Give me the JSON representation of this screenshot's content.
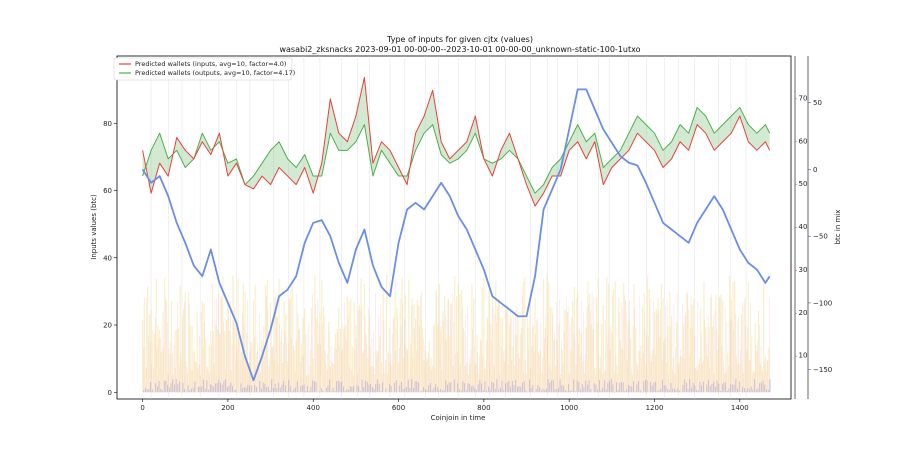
{
  "chart_data": {
    "type": "line",
    "title": "Type of inputs for given cjtx (values)",
    "subtitle": "wasabi2_zksnacks 2023-09-01 00-00-00--2023-10-01 00-00-00_unknown-static-100-1utxo",
    "xlabel": "Coinjoin in time",
    "ylabel": "Inputs values (btc)",
    "y2label": "btc in mix",
    "xlim": [
      -60,
      1520
    ],
    "ylim": [
      -2,
      100
    ],
    "y2lim": [
      0,
      80
    ],
    "y3lim": [
      -172,
      85
    ],
    "xticks": [
      0,
      200,
      400,
      600,
      800,
      1000,
      1200,
      1400
    ],
    "yticks": [
      0,
      20,
      40,
      60,
      80
    ],
    "y2ticks": [
      10,
      20,
      30,
      40,
      50,
      60,
      70
    ],
    "y3ticks": [
      50,
      0,
      -50,
      -100,
      -150
    ],
    "legend_position": "upper-left",
    "grid": "vertical-lines",
    "series": [
      {
        "name": "Predicted wallets (inputs, avg=10, factor=4.0)",
        "color": "#e8413a",
        "axis": "y2",
        "x": [
          0,
          20,
          40,
          60,
          80,
          100,
          120,
          140,
          160,
          180,
          200,
          220,
          240,
          260,
          280,
          300,
          320,
          340,
          360,
          380,
          400,
          420,
          440,
          460,
          480,
          500,
          520,
          540,
          560,
          580,
          600,
          620,
          640,
          660,
          680,
          700,
          720,
          740,
          760,
          780,
          800,
          820,
          840,
          860,
          880,
          900,
          920,
          940,
          960,
          980,
          1000,
          1020,
          1040,
          1060,
          1080,
          1100,
          1120,
          1140,
          1160,
          1180,
          1200,
          1220,
          1240,
          1260,
          1280,
          1300,
          1320,
          1340,
          1360,
          1380,
          1400,
          1420,
          1440,
          1460,
          1470
        ],
        "values": [
          58,
          48,
          55,
          52,
          61,
          58,
          56,
          60,
          57,
          62,
          52,
          55,
          50,
          49,
          52,
          50,
          54,
          52,
          50,
          54,
          48,
          55,
          70,
          62,
          60,
          66,
          75,
          55,
          60,
          58,
          54,
          50,
          62,
          66,
          72,
          60,
          56,
          58,
          60,
          66,
          56,
          52,
          58,
          62,
          56,
          50,
          45,
          48,
          52,
          52,
          58,
          60,
          56,
          60,
          50,
          54,
          56,
          58,
          62,
          60,
          58,
          54,
          56,
          60,
          58,
          64,
          62,
          58,
          60,
          62,
          66,
          60,
          58,
          60,
          58
        ]
      },
      {
        "name": "Predicted wallets (outputs, avg=10, factor=4.17)",
        "color": "#4fae4f",
        "axis": "y2",
        "x": [
          0,
          20,
          40,
          60,
          80,
          100,
          120,
          140,
          160,
          180,
          200,
          220,
          240,
          260,
          280,
          300,
          320,
          340,
          360,
          380,
          400,
          420,
          440,
          460,
          480,
          500,
          520,
          540,
          560,
          580,
          600,
          620,
          640,
          660,
          680,
          700,
          720,
          740,
          760,
          780,
          800,
          820,
          840,
          860,
          880,
          900,
          920,
          940,
          960,
          980,
          1000,
          1020,
          1040,
          1060,
          1080,
          1100,
          1120,
          1140,
          1160,
          1180,
          1200,
          1220,
          1240,
          1260,
          1280,
          1300,
          1320,
          1340,
          1360,
          1380,
          1400,
          1420,
          1440,
          1460,
          1470
        ],
        "values": [
          52,
          58,
          62,
          56,
          58,
          54,
          56,
          62,
          58,
          60,
          55,
          56,
          50,
          52,
          55,
          58,
          60,
          56,
          54,
          57,
          52,
          52,
          62,
          58,
          58,
          60,
          64,
          52,
          58,
          55,
          52,
          52,
          58,
          62,
          64,
          57,
          55,
          56,
          58,
          62,
          56,
          55,
          56,
          58,
          56,
          52,
          48,
          50,
          54,
          56,
          60,
          64,
          60,
          62,
          54,
          56,
          58,
          62,
          66,
          64,
          62,
          58,
          60,
          64,
          62,
          68,
          66,
          62,
          64,
          66,
          68,
          64,
          62,
          64,
          62
        ]
      },
      {
        "name": "btc in mix",
        "color": "#6b8ee6",
        "axis": "y3",
        "x": [
          0,
          20,
          40,
          60,
          80,
          100,
          120,
          140,
          160,
          180,
          200,
          220,
          240,
          260,
          280,
          300,
          320,
          340,
          360,
          380,
          400,
          420,
          440,
          460,
          480,
          500,
          520,
          540,
          560,
          580,
          600,
          620,
          640,
          660,
          680,
          700,
          720,
          740,
          760,
          780,
          800,
          820,
          840,
          860,
          880,
          900,
          920,
          940,
          960,
          980,
          1000,
          1020,
          1040,
          1060,
          1080,
          1100,
          1120,
          1140,
          1160,
          1180,
          1200,
          1220,
          1240,
          1260,
          1280,
          1300,
          1320,
          1340,
          1360,
          1380,
          1400,
          1420,
          1440,
          1460,
          1470
        ],
        "values": [
          0,
          -10,
          -5,
          -20,
          -40,
          -55,
          -72,
          -80,
          -60,
          -85,
          -100,
          -115,
          -140,
          -158,
          -140,
          -120,
          -95,
          -90,
          -80,
          -55,
          -40,
          -38,
          -50,
          -70,
          -85,
          -60,
          -45,
          -72,
          -88,
          -95,
          -55,
          -30,
          -25,
          -30,
          -20,
          -10,
          -20,
          -35,
          -45,
          -60,
          -75,
          -95,
          -100,
          -105,
          -110,
          -110,
          -80,
          -30,
          -15,
          0,
          30,
          60,
          60,
          45,
          30,
          20,
          10,
          5,
          3,
          -10,
          -25,
          -40,
          -45,
          -50,
          -55,
          -40,
          -30,
          -20,
          -30,
          -45,
          -60,
          -70,
          -75,
          -85,
          -80
        ]
      }
    ]
  }
}
